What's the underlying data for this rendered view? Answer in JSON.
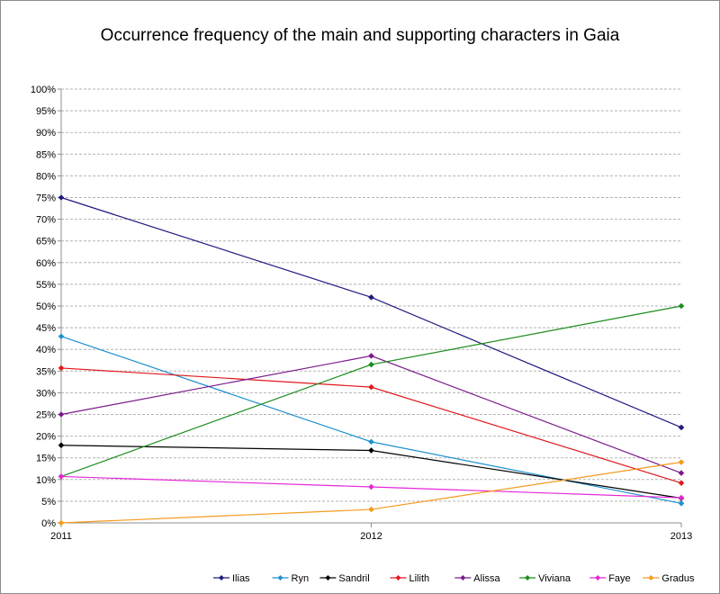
{
  "chart_data": {
    "type": "line",
    "title": "Occurrence frequency of the main and supporting characters in Gaia",
    "xlabel": "",
    "ylabel": "",
    "x": [
      "2011",
      "2012",
      "2013"
    ],
    "ylim": [
      0,
      100
    ],
    "y_ticks": [
      "0%",
      "5%",
      "10%",
      "15%",
      "20%",
      "25%",
      "30%",
      "35%",
      "40%",
      "45%",
      "50%",
      "55%",
      "60%",
      "65%",
      "70%",
      "75%",
      "80%",
      "85%",
      "90%",
      "95%",
      "100%"
    ],
    "grid": "horizontal",
    "legend_position": "bottom",
    "series": [
      {
        "name": "Ilias",
        "color": "#1f1a80",
        "values": [
          75,
          52,
          22
        ]
      },
      {
        "name": "Ryn",
        "color": "#1e90d0",
        "values": [
          43,
          18.7,
          4.5
        ]
      },
      {
        "name": "Sandril",
        "color": "#000000",
        "values": [
          17.9,
          16.7,
          5.7
        ]
      },
      {
        "name": "Lilith",
        "color": "#e0191c",
        "values": [
          35.7,
          31.3,
          9.2
        ]
      },
      {
        "name": "Alissa",
        "color": "#7b1a8c",
        "values": [
          25,
          38.5,
          11.5
        ]
      },
      {
        "name": "Viviana",
        "color": "#1c8c1c",
        "values": [
          10.7,
          36.5,
          50
        ]
      },
      {
        "name": "Faye",
        "color": "#e626d8",
        "values": [
          10.7,
          8.3,
          5.8
        ]
      },
      {
        "name": "Gradus",
        "color": "#f59a1e",
        "values": [
          0,
          3.1,
          14
        ]
      }
    ]
  }
}
